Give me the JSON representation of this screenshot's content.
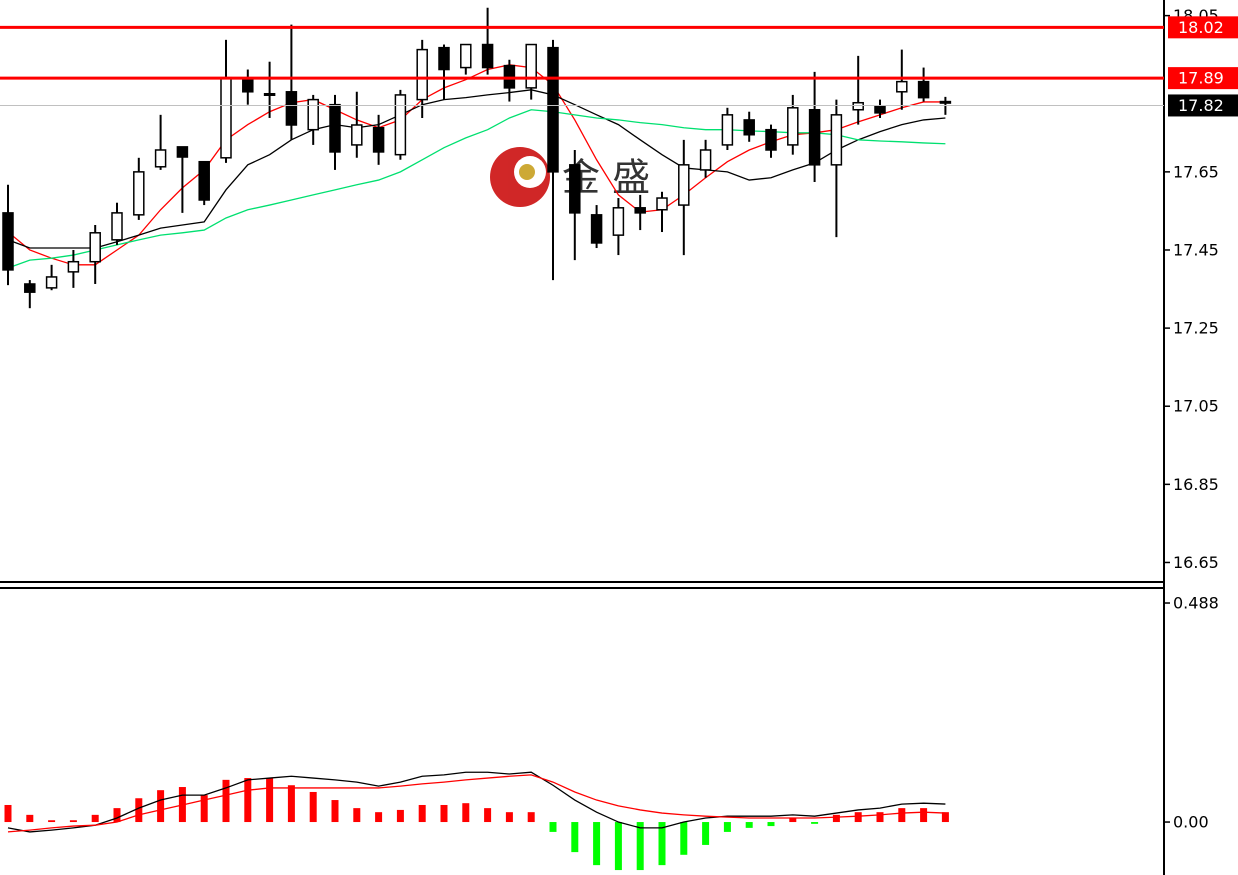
{
  "chart_data": [
    {
      "type": "candlestick",
      "ylim": [
        16.6,
        18.09
      ],
      "yticks": [
        16.65,
        16.85,
        17.05,
        17.25,
        17.45,
        17.65,
        18.05
      ],
      "up_color": "#ffffff",
      "down_color": "#000000",
      "wick_color": "#000000",
      "open": [
        17.545,
        17.363,
        17.353,
        17.394,
        17.42,
        17.476,
        17.54,
        17.663,
        17.714,
        17.676,
        17.686,
        17.886,
        17.85,
        17.855,
        17.758,
        17.822,
        17.719,
        17.763,
        17.694,
        17.835,
        17.968,
        17.917,
        17.976,
        17.922,
        17.865,
        17.968,
        17.668,
        17.54,
        17.488,
        17.558,
        17.553,
        17.565,
        17.655,
        17.719,
        17.783,
        17.758,
        17.719,
        17.809,
        17.668,
        17.809,
        17.817,
        17.855,
        17.881,
        17.83
      ],
      "high": [
        17.617,
        17.373,
        17.412,
        17.45,
        17.514,
        17.571,
        17.686,
        17.796,
        17.714,
        17.676,
        17.988,
        17.912,
        17.932,
        18.027,
        17.847,
        17.847,
        17.855,
        17.796,
        17.86,
        17.988,
        17.976,
        17.976,
        18.07,
        17.937,
        17.976,
        17.988,
        17.706,
        17.565,
        17.583,
        17.591,
        17.599,
        17.732,
        17.732,
        17.814,
        17.804,
        17.771,
        17.847,
        17.906,
        17.835,
        17.947,
        17.835,
        17.963,
        17.917,
        17.842
      ],
      "low": [
        17.36,
        17.301,
        17.347,
        17.353,
        17.363,
        17.463,
        17.527,
        17.655,
        17.545,
        17.565,
        17.673,
        17.822,
        17.788,
        17.732,
        17.719,
        17.655,
        17.686,
        17.668,
        17.681,
        17.788,
        17.835,
        17.899,
        17.899,
        17.83,
        17.835,
        17.373,
        17.424,
        17.455,
        17.437,
        17.501,
        17.496,
        17.437,
        17.635,
        17.706,
        17.727,
        17.686,
        17.694,
        17.624,
        17.483,
        17.771,
        17.788,
        17.809,
        17.83,
        17.796
      ],
      "close": [
        17.399,
        17.342,
        17.381,
        17.42,
        17.494,
        17.545,
        17.65,
        17.706,
        17.688,
        17.578,
        17.891,
        17.855,
        17.847,
        17.77,
        17.835,
        17.701,
        17.77,
        17.701,
        17.847,
        17.963,
        17.912,
        17.976,
        17.917,
        17.865,
        17.976,
        17.65,
        17.545,
        17.468,
        17.558,
        17.545,
        17.583,
        17.668,
        17.706,
        17.796,
        17.745,
        17.706,
        17.814,
        17.668,
        17.796,
        17.827,
        17.801,
        17.881,
        17.84,
        17.829
      ],
      "series": [
        {
          "color": "#ff0000",
          "values": [
            17.496,
            17.45,
            17.429,
            17.412,
            17.412,
            17.45,
            17.488,
            17.553,
            17.609,
            17.655,
            17.732,
            17.771,
            17.804,
            17.827,
            17.835,
            17.809,
            17.783,
            17.763,
            17.783,
            17.835,
            17.865,
            17.886,
            17.912,
            17.924,
            17.917,
            17.873,
            17.783,
            17.681,
            17.591,
            17.547,
            17.553,
            17.591,
            17.635,
            17.676,
            17.706,
            17.727,
            17.745,
            17.75,
            17.758,
            17.778,
            17.796,
            17.814,
            17.829,
            17.829
          ]
        },
        {
          "color": "#000000",
          "values": [
            17.476,
            17.455,
            17.455,
            17.455,
            17.455,
            17.471,
            17.488,
            17.506,
            17.514,
            17.522,
            17.604,
            17.668,
            17.694,
            17.732,
            17.758,
            17.771,
            17.763,
            17.771,
            17.796,
            17.822,
            17.835,
            17.84,
            17.847,
            17.853,
            17.86,
            17.847,
            17.822,
            17.796,
            17.771,
            17.732,
            17.694,
            17.66,
            17.655,
            17.65,
            17.629,
            17.635,
            17.655,
            17.673,
            17.706,
            17.732,
            17.753,
            17.771,
            17.783,
            17.788
          ]
        },
        {
          "color": "#00e070",
          "values": [
            17.404,
            17.424,
            17.429,
            17.437,
            17.45,
            17.463,
            17.476,
            17.488,
            17.494,
            17.501,
            17.532,
            17.553,
            17.565,
            17.578,
            17.591,
            17.604,
            17.617,
            17.629,
            17.65,
            17.681,
            17.712,
            17.737,
            17.758,
            17.788,
            17.809,
            17.804,
            17.796,
            17.788,
            17.783,
            17.776,
            17.771,
            17.763,
            17.758,
            17.758,
            17.755,
            17.753,
            17.75,
            17.75,
            17.745,
            17.732,
            17.729,
            17.727,
            17.724,
            17.722
          ]
        }
      ],
      "levels": [
        {
          "value": 18.02,
          "color": "#ff0000",
          "label_color": "#ff0000"
        },
        {
          "value": 17.89,
          "color": "#ff0000",
          "label_color": "#ff0000"
        },
        {
          "value": 17.82,
          "color": "#c0c0c0",
          "label_color": "#000000"
        }
      ],
      "watermark": "金 盛"
    },
    {
      "type": "macd",
      "ylim": [
        -0.118,
        0.517
      ],
      "yticks": [
        0.488,
        {
          "value": 0,
          "label": "0.00"
        }
      ],
      "up_color": "#ff0000",
      "down_color": "#00ff00",
      "histogram": [
        0.038,
        0.016,
        0.004,
        0.004,
        0.016,
        0.031,
        0.053,
        0.071,
        0.078,
        0.06,
        0.094,
        0.098,
        0.098,
        0.082,
        0.067,
        0.049,
        0.031,
        0.022,
        0.027,
        0.038,
        0.038,
        0.042,
        0.031,
        0.022,
        0.022,
        -0.022,
        -0.067,
        -0.096,
        -0.107,
        -0.107,
        -0.096,
        -0.073,
        -0.051,
        -0.022,
        -0.013,
        -0.009,
        0.009,
        -0.004,
        0.016,
        0.022,
        0.022,
        0.031,
        0.031,
        0.022
      ],
      "series": [
        {
          "color": "#000000",
          "values": [
            -0.013,
            -0.022,
            -0.018,
            -0.013,
            -0.007,
            0.009,
            0.031,
            0.049,
            0.06,
            0.06,
            0.076,
            0.094,
            0.098,
            0.102,
            0.098,
            0.094,
            0.089,
            0.08,
            0.089,
            0.102,
            0.105,
            0.111,
            0.111,
            0.107,
            0.111,
            0.082,
            0.049,
            0.022,
            0,
            -0.013,
            -0.013,
            0,
            0.009,
            0.013,
            0.013,
            0.013,
            0.016,
            0.013,
            0.02,
            0.027,
            0.031,
            0.04,
            0.042,
            0.04
          ]
        },
        {
          "color": "#ff0000",
          "values": [
            -0.022,
            -0.018,
            -0.013,
            -0.009,
            -0.007,
            0,
            0.016,
            0.027,
            0.038,
            0.049,
            0.06,
            0.071,
            0.076,
            0.076,
            0.076,
            0.076,
            0.076,
            0.076,
            0.08,
            0.085,
            0.089,
            0.094,
            0.098,
            0.102,
            0.105,
            0.089,
            0.067,
            0.049,
            0.036,
            0.027,
            0.02,
            0.016,
            0.013,
            0.011,
            0.009,
            0.009,
            0.009,
            0.009,
            0.011,
            0.013,
            0.016,
            0.02,
            0.022,
            0.02
          ]
        }
      ]
    }
  ]
}
